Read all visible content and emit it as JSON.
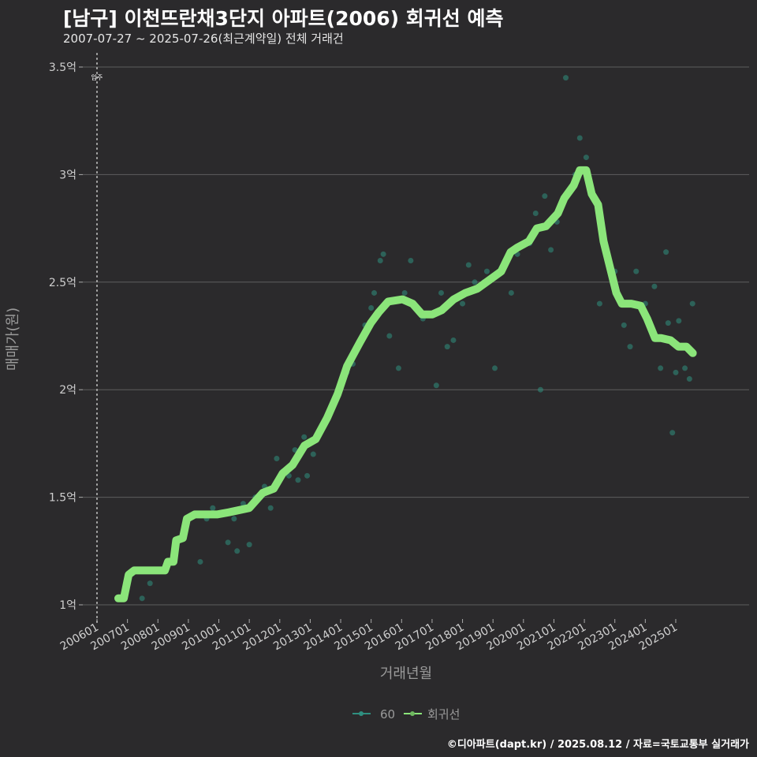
{
  "title": "[남구] 이천뜨란채3단지 아파트(2006) 회귀선 예측",
  "subtitle": "2007-07-27 ~ 2025-07-26(최근계약일) 전체 거래건",
  "caption": "©디아파트(dapt.kr) / 2025.08.12 / 자료=국토교통부 실거래가",
  "colors": {
    "background": "#2b2a2c",
    "regression": "#8be57a",
    "scatter": "#2f8f80",
    "grid": "#5e5e5e"
  },
  "chart_data": {
    "type": "scatter",
    "xlabel": "거래년월",
    "ylabel": "매매가(원)",
    "xlim": [
      2006,
      2026.6
    ],
    "ylim": [
      0.95,
      3.55
    ],
    "grid": true,
    "legend_position": "bottom",
    "x_ticks": [
      "200601",
      "200701",
      "200801",
      "200901",
      "201001",
      "201101",
      "201201",
      "201301",
      "201401",
      "201501",
      "201601",
      "201701",
      "201801",
      "201901",
      "202001",
      "202101",
      "202201",
      "202301",
      "202401",
      "202501"
    ],
    "y_ticks": [
      {
        "value": 1,
        "label": "1억"
      },
      {
        "value": 1.5,
        "label": "1.5억"
      },
      {
        "value": 2,
        "label": "2억"
      },
      {
        "value": 2.5,
        "label": "2.5억"
      },
      {
        "value": 3,
        "label": "3억"
      },
      {
        "value": 3.5,
        "label": "3.5억"
      }
    ],
    "annotation": {
      "x": 2006,
      "label": "입주"
    },
    "series": [
      {
        "name": "60",
        "type": "scatter",
        "points": [
          [
            2007.48,
            1.03
          ],
          [
            2007.74,
            1.1
          ],
          [
            2008.62,
            1.3
          ],
          [
            2009.39,
            1.2
          ],
          [
            2009.6,
            1.4
          ],
          [
            2009.8,
            1.45
          ],
          [
            2010.1,
            1.43
          ],
          [
            2010.3,
            1.29
          ],
          [
            2010.5,
            1.4
          ],
          [
            2010.6,
            1.25
          ],
          [
            2010.8,
            1.47
          ],
          [
            2011.0,
            1.28
          ],
          [
            2011.2,
            1.5
          ],
          [
            2011.5,
            1.55
          ],
          [
            2011.7,
            1.45
          ],
          [
            2011.9,
            1.68
          ],
          [
            2012.1,
            1.62
          ],
          [
            2012.3,
            1.6
          ],
          [
            2012.5,
            1.72
          ],
          [
            2012.6,
            1.58
          ],
          [
            2012.8,
            1.78
          ],
          [
            2012.9,
            1.6
          ],
          [
            2013.1,
            1.7
          ],
          [
            2013.3,
            1.8
          ],
          [
            2013.6,
            1.88
          ],
          [
            2013.9,
            2.0
          ],
          [
            2014.2,
            2.08
          ],
          [
            2014.4,
            2.12
          ],
          [
            2014.6,
            2.22
          ],
          [
            2014.8,
            2.3
          ],
          [
            2015.0,
            2.38
          ],
          [
            2015.1,
            2.45
          ],
          [
            2015.3,
            2.6
          ],
          [
            2015.4,
            2.63
          ],
          [
            2015.6,
            2.25
          ],
          [
            2015.9,
            2.1
          ],
          [
            2016.1,
            2.45
          ],
          [
            2016.3,
            2.6
          ],
          [
            2016.7,
            2.33
          ],
          [
            2017.14,
            2.02
          ],
          [
            2017.3,
            2.45
          ],
          [
            2017.5,
            2.2
          ],
          [
            2017.7,
            2.23
          ],
          [
            2018.0,
            2.4
          ],
          [
            2018.2,
            2.58
          ],
          [
            2018.4,
            2.5
          ],
          [
            2018.7,
            2.5
          ],
          [
            2018.8,
            2.55
          ],
          [
            2019.06,
            2.1
          ],
          [
            2019.2,
            2.55
          ],
          [
            2019.4,
            2.6
          ],
          [
            2019.6,
            2.45
          ],
          [
            2019.8,
            2.63
          ],
          [
            2020.2,
            2.68
          ],
          [
            2020.4,
            2.82
          ],
          [
            2020.56,
            2.0
          ],
          [
            2020.7,
            2.9
          ],
          [
            2020.9,
            2.65
          ],
          [
            2021.1,
            2.78
          ],
          [
            2021.39,
            3.45
          ],
          [
            2021.7,
            3.0
          ],
          [
            2021.85,
            3.17
          ],
          [
            2022.06,
            3.08
          ],
          [
            2022.5,
            2.4
          ],
          [
            2023.0,
            2.55
          ],
          [
            2023.3,
            2.3
          ],
          [
            2023.5,
            2.2
          ],
          [
            2023.7,
            2.55
          ],
          [
            2024.0,
            2.4
          ],
          [
            2024.3,
            2.48
          ],
          [
            2024.5,
            2.1
          ],
          [
            2024.68,
            2.64
          ],
          [
            2024.75,
            2.31
          ],
          [
            2024.89,
            1.8
          ],
          [
            2025.0,
            2.08
          ],
          [
            2025.1,
            2.32
          ],
          [
            2025.3,
            2.1
          ],
          [
            2025.45,
            2.05
          ],
          [
            2025.55,
            2.4
          ]
        ]
      },
      {
        "name": "회귀선",
        "type": "line",
        "points": [
          [
            2006.7,
            1.03
          ],
          [
            2006.88,
            1.03
          ],
          [
            2007.04,
            1.14
          ],
          [
            2007.22,
            1.16
          ],
          [
            2008.23,
            1.16
          ],
          [
            2008.33,
            1.2
          ],
          [
            2008.51,
            1.2
          ],
          [
            2008.6,
            1.3
          ],
          [
            2008.82,
            1.31
          ],
          [
            2008.95,
            1.4
          ],
          [
            2009.21,
            1.42
          ],
          [
            2009.94,
            1.42
          ],
          [
            2010.33,
            1.43
          ],
          [
            2011.0,
            1.45
          ],
          [
            2011.44,
            1.52
          ],
          [
            2011.8,
            1.54
          ],
          [
            2012.09,
            1.61
          ],
          [
            2012.42,
            1.65
          ],
          [
            2012.81,
            1.74
          ],
          [
            2013.18,
            1.77
          ],
          [
            2013.56,
            1.87
          ],
          [
            2013.9,
            1.98
          ],
          [
            2014.21,
            2.11
          ],
          [
            2014.63,
            2.22
          ],
          [
            2014.99,
            2.31
          ],
          [
            2015.25,
            2.36
          ],
          [
            2015.56,
            2.41
          ],
          [
            2016.03,
            2.42
          ],
          [
            2016.36,
            2.4
          ],
          [
            2016.67,
            2.35
          ],
          [
            2017.01,
            2.35
          ],
          [
            2017.32,
            2.37
          ],
          [
            2017.71,
            2.42
          ],
          [
            2018.1,
            2.45
          ],
          [
            2018.49,
            2.47
          ],
          [
            2018.88,
            2.51
          ],
          [
            2019.27,
            2.55
          ],
          [
            2019.58,
            2.64
          ],
          [
            2019.79,
            2.66
          ],
          [
            2020.18,
            2.69
          ],
          [
            2020.44,
            2.75
          ],
          [
            2020.74,
            2.76
          ],
          [
            2021.13,
            2.82
          ],
          [
            2021.34,
            2.89
          ],
          [
            2021.65,
            2.95
          ],
          [
            2021.85,
            3.02
          ],
          [
            2022.06,
            3.02
          ],
          [
            2022.24,
            2.91
          ],
          [
            2022.45,
            2.86
          ],
          [
            2022.63,
            2.69
          ],
          [
            2022.84,
            2.57
          ],
          [
            2023.05,
            2.45
          ],
          [
            2023.23,
            2.4
          ],
          [
            2023.54,
            2.4
          ],
          [
            2023.85,
            2.39
          ],
          [
            2024.06,
            2.33
          ],
          [
            2024.32,
            2.24
          ],
          [
            2024.52,
            2.24
          ],
          [
            2024.83,
            2.23
          ],
          [
            2025.09,
            2.2
          ],
          [
            2025.35,
            2.2
          ],
          [
            2025.56,
            2.17
          ]
        ]
      }
    ]
  }
}
